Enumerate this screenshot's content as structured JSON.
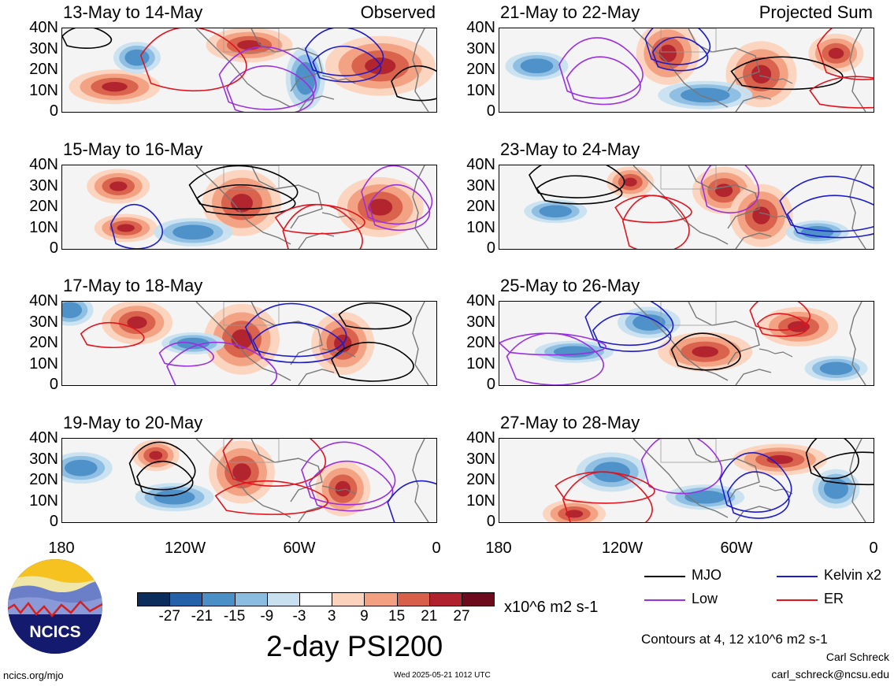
{
  "panels": [
    {
      "title": "13-May to 14-May",
      "label": "Observed"
    },
    {
      "title": "21-May to 22-May",
      "label": "Projected Sum"
    },
    {
      "title": "15-May to 16-May",
      "label": ""
    },
    {
      "title": "23-May to 24-May",
      "label": ""
    },
    {
      "title": "17-May to 18-May",
      "label": ""
    },
    {
      "title": "25-May to 26-May",
      "label": ""
    },
    {
      "title": "19-May to 20-May",
      "label": ""
    },
    {
      "title": "27-May to 28-May",
      "label": ""
    }
  ],
  "y_ticks": [
    "40N",
    "30N",
    "20N",
    "10N",
    "0"
  ],
  "x_ticks": [
    "180",
    "120W",
    "60W",
    "0"
  ],
  "colorbar": {
    "ticks": [
      "-27",
      "-21",
      "-15",
      "-9",
      "-3",
      "3",
      "9",
      "15",
      "21",
      "27"
    ],
    "units": "x10^6 m2 s-1",
    "colors": [
      "#0b2d5e",
      "#2461a8",
      "#4b8fc7",
      "#8bbde0",
      "#c8e0f0",
      "#ffffff",
      "#fbd3bd",
      "#f2a080",
      "#d8604b",
      "#b0222d",
      "#6e0a1e"
    ]
  },
  "title": "2-day PSI200",
  "legend": {
    "mjo": {
      "label": "MJO",
      "color": "#000000"
    },
    "kelvin": {
      "label": "Kelvin x2",
      "color": "#1c1ccc"
    },
    "low": {
      "label": "Low",
      "color": "#9a30e0"
    },
    "er": {
      "label": "ER",
      "color": "#e0141e"
    }
  },
  "contour_note": "Contours at 4, 12 x10^6 m2 s-1",
  "author": "Carl Schreck",
  "email": "carl_schreck@ncsu.edu",
  "logo_text": "NCICS",
  "site": "ncics.org/mjo",
  "timestamp": "Wed 2025-05-21 1012 UTC"
}
